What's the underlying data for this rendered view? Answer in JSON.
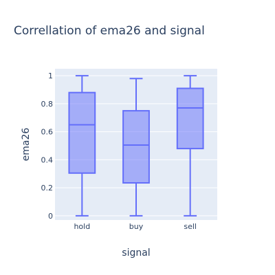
{
  "chart_data": {
    "type": "box",
    "title": "Correllation of ema26 and signal",
    "xlabel": "signal",
    "ylabel": "ema26",
    "ylim": [
      -0.03,
      1.05
    ],
    "yticks": [
      0,
      0.2,
      0.4,
      0.6,
      0.8,
      1
    ],
    "ytick_labels": [
      "0",
      "0.2",
      "0.4",
      "0.6",
      "0.8",
      "1"
    ],
    "grid": true,
    "categories": [
      "hold",
      "buy",
      "sell"
    ],
    "boxes": [
      {
        "category": "hold",
        "min": 0.0,
        "q1": 0.305,
        "median": 0.65,
        "q3": 0.88,
        "max": 1.0
      },
      {
        "category": "buy",
        "min": 0.0,
        "q1": 0.235,
        "median": 0.505,
        "q3": 0.75,
        "max": 0.98
      },
      {
        "category": "sell",
        "min": 0.0,
        "q1": 0.48,
        "median": 0.77,
        "q3": 0.91,
        "max": 1.0
      }
    ],
    "colors": {
      "box_fill": "#636efa",
      "box_line": "#636efa",
      "plot_bg": "#e5ecf6",
      "grid": "#ffffff",
      "text": "#2a3f5f"
    }
  }
}
